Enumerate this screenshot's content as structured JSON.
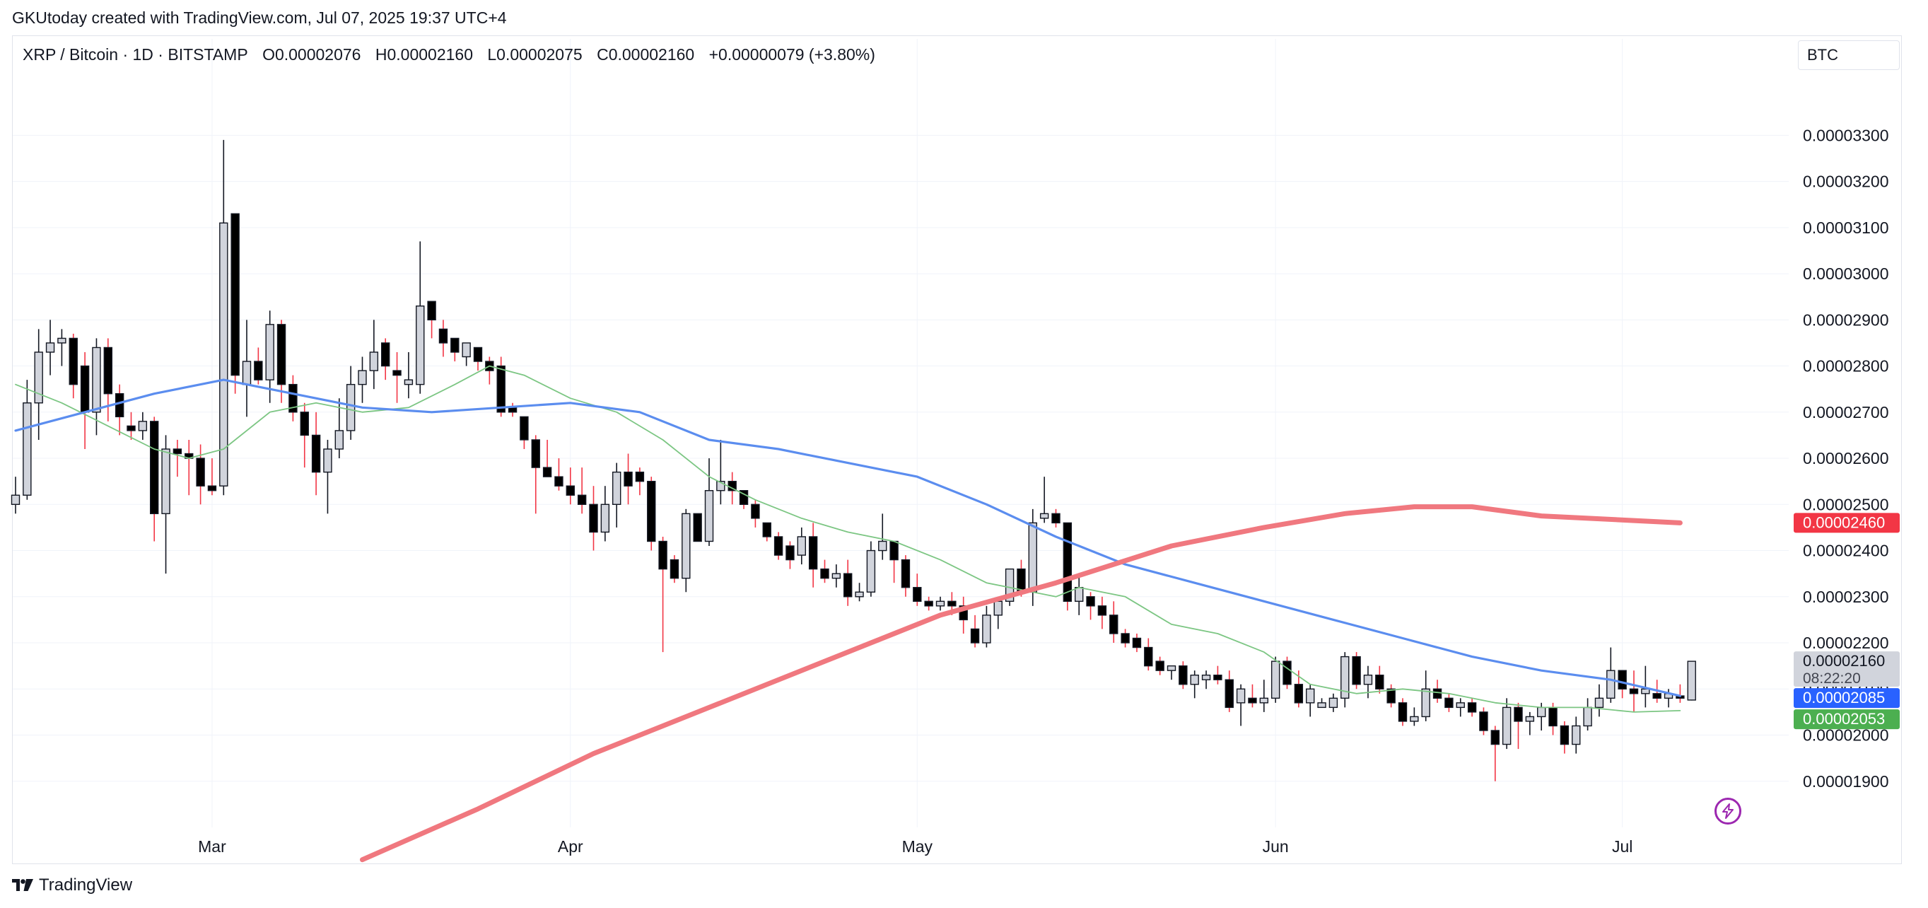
{
  "caption": "GKUtoday created with TradingView.com, Jul 07, 2025 19:37 UTC+4",
  "legend": {
    "symbol": "XRP / Bitcoin · 1D · BITSTAMP",
    "open": "O0.00002076",
    "high": "H0.00002160",
    "low": "L0.00002075",
    "close": "C0.00002160",
    "change": "+0.00000079 (+3.80%)"
  },
  "currency_button": "BTC",
  "footer_brand": "TradingView",
  "colors": {
    "up_body": "#d1d4dc",
    "down_body": "#000000",
    "ma_red": "#f0787f",
    "ma_blue": "#5b8def",
    "ma_green": "#7cc683",
    "badge_red": "#f23645",
    "badge_blue": "#2962ff",
    "badge_green": "#4caf50",
    "badge_gray": "#d1d4dc"
  },
  "chart_data": {
    "type": "candlestick",
    "title": "XRP / Bitcoin · 1D · BITSTAMP",
    "ylim": [
      1.8e-05,
      3.44e-05
    ],
    "y_ticks": [
      "0.00001900",
      "0.00002000",
      "0.00002100",
      "0.00002200",
      "0.00002300",
      "0.00002400",
      "0.00002500",
      "0.00002600",
      "0.00002700",
      "0.00002800",
      "0.00002900",
      "0.00003000",
      "0.00003100",
      "0.00003200",
      "0.00003300"
    ],
    "x_labels": [
      {
        "label": "Mar",
        "day": 17
      },
      {
        "label": "Apr",
        "day": 48
      },
      {
        "label": "May",
        "day": 78
      },
      {
        "label": "Jun",
        "day": 109
      },
      {
        "label": "Jul",
        "day": 139
      }
    ],
    "candles": [
      [
        2.5e-05,
        2.56e-05,
        2.48e-05,
        2.52e-05
      ],
      [
        2.52e-05,
        2.77e-05,
        2.51e-05,
        2.72e-05
      ],
      [
        2.72e-05,
        2.88e-05,
        2.64e-05,
        2.83e-05
      ],
      [
        2.83e-05,
        2.9e-05,
        2.78e-05,
        2.85e-05
      ],
      [
        2.85e-05,
        2.88e-05,
        2.8e-05,
        2.86e-05
      ],
      [
        2.86e-05,
        2.87e-05,
        2.73e-05,
        2.76e-05
      ],
      [
        2.8e-05,
        2.83e-05,
        2.62e-05,
        2.7e-05
      ],
      [
        2.7e-05,
        2.86e-05,
        2.65e-05,
        2.84e-05
      ],
      [
        2.84e-05,
        2.86e-05,
        2.68e-05,
        2.74e-05
      ],
      [
        2.74e-05,
        2.76e-05,
        2.65e-05,
        2.69e-05
      ],
      [
        2.67e-05,
        2.7e-05,
        2.64e-05,
        2.66e-05
      ],
      [
        2.66e-05,
        2.7e-05,
        2.64e-05,
        2.68e-05
      ],
      [
        2.68e-05,
        2.69e-05,
        2.42e-05,
        2.48e-05
      ],
      [
        2.48e-05,
        2.65e-05,
        2.35e-05,
        2.62e-05
      ],
      [
        2.62e-05,
        2.64e-05,
        2.56e-05,
        2.61e-05
      ],
      [
        2.61e-05,
        2.64e-05,
        2.52e-05,
        2.6e-05
      ],
      [
        2.6e-05,
        2.63e-05,
        2.5e-05,
        2.54e-05
      ],
      [
        2.54e-05,
        2.6e-05,
        2.52e-05,
        2.53e-05
      ],
      [
        2.54e-05,
        3.29e-05,
        2.52e-05,
        3.11e-05
      ],
      [
        3.13e-05,
        3.13e-05,
        2.74e-05,
        2.78e-05
      ],
      [
        2.76e-05,
        2.9e-05,
        2.69e-05,
        2.81e-05
      ],
      [
        2.81e-05,
        2.84e-05,
        2.76e-05,
        2.77e-05
      ],
      [
        2.77e-05,
        2.92e-05,
        2.72e-05,
        2.89e-05
      ],
      [
        2.89e-05,
        2.9e-05,
        2.72e-05,
        2.76e-05
      ],
      [
        2.76e-05,
        2.78e-05,
        2.68e-05,
        2.7e-05
      ],
      [
        2.7e-05,
        2.72e-05,
        2.58e-05,
        2.65e-05
      ],
      [
        2.65e-05,
        2.7e-05,
        2.52e-05,
        2.57e-05
      ],
      [
        2.57e-05,
        2.64e-05,
        2.48e-05,
        2.62e-05
      ],
      [
        2.62e-05,
        2.73e-05,
        2.6e-05,
        2.66e-05
      ],
      [
        2.66e-05,
        2.8e-05,
        2.64e-05,
        2.76e-05
      ],
      [
        2.76e-05,
        2.82e-05,
        2.72e-05,
        2.79e-05
      ],
      [
        2.79e-05,
        2.9e-05,
        2.75e-05,
        2.83e-05
      ],
      [
        2.85e-05,
        2.86e-05,
        2.77e-05,
        2.8e-05
      ],
      [
        2.79e-05,
        2.83e-05,
        2.72e-05,
        2.78e-05
      ],
      [
        2.76e-05,
        2.83e-05,
        2.73e-05,
        2.77e-05
      ],
      [
        2.76e-05,
        3.07e-05,
        2.74e-05,
        2.93e-05
      ],
      [
        2.94e-05,
        2.94e-05,
        2.86e-05,
        2.9e-05
      ],
      [
        2.88e-05,
        2.9e-05,
        2.82e-05,
        2.85e-05
      ],
      [
        2.86e-05,
        2.86e-05,
        2.81e-05,
        2.83e-05
      ],
      [
        2.82e-05,
        2.85e-05,
        2.8e-05,
        2.85e-05
      ],
      [
        2.84e-05,
        2.84e-05,
        2.79e-05,
        2.81e-05
      ],
      [
        2.81e-05,
        2.82e-05,
        2.76e-05,
        2.79e-05
      ],
      [
        2.8e-05,
        2.82e-05,
        2.69e-05,
        2.7e-05
      ],
      [
        2.71e-05,
        2.72e-05,
        2.69e-05,
        2.7e-05
      ],
      [
        2.69e-05,
        2.69e-05,
        2.62e-05,
        2.64e-05
      ],
      [
        2.64e-05,
        2.65e-05,
        2.48e-05,
        2.58e-05
      ],
      [
        2.58e-05,
        2.64e-05,
        2.56e-05,
        2.56e-05
      ],
      [
        2.56e-05,
        2.6e-05,
        2.53e-05,
        2.54e-05
      ],
      [
        2.54e-05,
        2.58e-05,
        2.5e-05,
        2.52e-05
      ],
      [
        2.52e-05,
        2.58e-05,
        2.48e-05,
        2.5e-05
      ],
      [
        2.5e-05,
        2.54e-05,
        2.4e-05,
        2.44e-05
      ],
      [
        2.44e-05,
        2.54e-05,
        2.42e-05,
        2.5e-05
      ],
      [
        2.5e-05,
        2.59e-05,
        2.45e-05,
        2.57e-05
      ],
      [
        2.57e-05,
        2.61e-05,
        2.5e-05,
        2.54e-05
      ],
      [
        2.57e-05,
        2.58e-05,
        2.52e-05,
        2.55e-05
      ],
      [
        2.55e-05,
        2.56e-05,
        2.4e-05,
        2.42e-05
      ],
      [
        2.42e-05,
        2.43e-05,
        2.18e-05,
        2.36e-05
      ],
      [
        2.38e-05,
        2.39e-05,
        2.33e-05,
        2.34e-05
      ],
      [
        2.34e-05,
        2.49e-05,
        2.31e-05,
        2.48e-05
      ],
      [
        2.48e-05,
        2.48e-05,
        2.42e-05,
        2.42e-05
      ],
      [
        2.42e-05,
        2.6e-05,
        2.41e-05,
        2.53e-05
      ],
      [
        2.53e-05,
        2.64e-05,
        2.5e-05,
        2.55e-05
      ],
      [
        2.55e-05,
        2.57e-05,
        2.5e-05,
        2.53e-05
      ],
      [
        2.53e-05,
        2.53e-05,
        2.49e-05,
        2.5e-05
      ],
      [
        2.5e-05,
        2.51e-05,
        2.45e-05,
        2.47e-05
      ],
      [
        2.46e-05,
        2.46e-05,
        2.42e-05,
        2.43e-05
      ],
      [
        2.43e-05,
        2.44e-05,
        2.38e-05,
        2.39e-05
      ],
      [
        2.41e-05,
        2.42e-05,
        2.36e-05,
        2.38e-05
      ],
      [
        2.39e-05,
        2.45e-05,
        2.37e-05,
        2.43e-05
      ],
      [
        2.43e-05,
        2.46e-05,
        2.32e-05,
        2.36e-05
      ],
      [
        2.36e-05,
        2.38e-05,
        2.33e-05,
        2.34e-05
      ],
      [
        2.34e-05,
        2.37e-05,
        2.32e-05,
        2.35e-05
      ],
      [
        2.35e-05,
        2.38e-05,
        2.28e-05,
        2.3e-05
      ],
      [
        2.3e-05,
        2.33e-05,
        2.29e-05,
        2.31e-05
      ],
      [
        2.31e-05,
        2.42e-05,
        2.3e-05,
        2.4e-05
      ],
      [
        2.4e-05,
        2.48e-05,
        2.38e-05,
        2.42e-05
      ],
      [
        2.42e-05,
        2.42e-05,
        2.33e-05,
        2.38e-05
      ],
      [
        2.38e-05,
        2.39e-05,
        2.3e-05,
        2.32e-05
      ],
      [
        2.32e-05,
        2.35e-05,
        2.28e-05,
        2.29e-05
      ],
      [
        2.29e-05,
        2.3e-05,
        2.27e-05,
        2.28e-05
      ],
      [
        2.28e-05,
        2.3e-05,
        2.27e-05,
        2.29e-05
      ],
      [
        2.29e-05,
        2.31e-05,
        2.26e-05,
        2.28e-05
      ],
      [
        2.28e-05,
        2.3e-05,
        2.22e-05,
        2.25e-05
      ],
      [
        2.23e-05,
        2.26e-05,
        2.19e-05,
        2.2e-05
      ],
      [
        2.2e-05,
        2.28e-05,
        2.19e-05,
        2.26e-05
      ],
      [
        2.26e-05,
        2.3e-05,
        2.23e-05,
        2.29e-05
      ],
      [
        2.29e-05,
        2.36e-05,
        2.28e-05,
        2.36e-05
      ],
      [
        2.36e-05,
        2.38e-05,
        2.3e-05,
        2.31e-05
      ],
      [
        2.31e-05,
        2.49e-05,
        2.28e-05,
        2.46e-05
      ],
      [
        2.47e-05,
        2.56e-05,
        2.46e-05,
        2.48e-05
      ],
      [
        2.48e-05,
        2.49e-05,
        2.45e-05,
        2.46e-05
      ],
      [
        2.46e-05,
        2.46e-05,
        2.27e-05,
        2.29e-05
      ],
      [
        2.29e-05,
        2.35e-05,
        2.26e-05,
        2.32e-05
      ],
      [
        2.3e-05,
        2.31e-05,
        2.25e-05,
        2.28e-05
      ],
      [
        2.28e-05,
        2.3e-05,
        2.23e-05,
        2.26e-05
      ],
      [
        2.26e-05,
        2.29e-05,
        2.2e-05,
        2.22e-05
      ],
      [
        2.22e-05,
        2.23e-05,
        2.19e-05,
        2.2e-05
      ],
      [
        2.21e-05,
        2.22e-05,
        2.18e-05,
        2.19e-05
      ],
      [
        2.19e-05,
        2.21e-05,
        2.14e-05,
        2.15e-05
      ],
      [
        2.16e-05,
        2.17e-05,
        2.13e-05,
        2.14e-05
      ],
      [
        2.14e-05,
        2.15e-05,
        2.12e-05,
        2.15e-05
      ],
      [
        2.15e-05,
        2.16e-05,
        2.1e-05,
        2.11e-05
      ],
      [
        2.11e-05,
        2.14e-05,
        2.08e-05,
        2.13e-05
      ],
      [
        2.12e-05,
        2.14e-05,
        2.1e-05,
        2.13e-05
      ],
      [
        2.13e-05,
        2.15e-05,
        2.11e-05,
        2.12e-05
      ],
      [
        2.12e-05,
        2.14e-05,
        2.05e-05,
        2.06e-05
      ],
      [
        2.07e-05,
        2.11e-05,
        2.02e-05,
        2.1e-05
      ],
      [
        2.08e-05,
        2.11e-05,
        2.06e-05,
        2.07e-05
      ],
      [
        2.07e-05,
        2.12e-05,
        2.05e-05,
        2.08e-05
      ],
      [
        2.08e-05,
        2.17e-05,
        2.07e-05,
        2.16e-05
      ],
      [
        2.16e-05,
        2.17e-05,
        2.1e-05,
        2.11e-05
      ],
      [
        2.11e-05,
        2.14e-05,
        2.06e-05,
        2.07e-05
      ],
      [
        2.07e-05,
        2.11e-05,
        2.04e-05,
        2.1e-05
      ],
      [
        2.06e-05,
        2.08e-05,
        2.06e-05,
        2.07e-05
      ],
      [
        2.06e-05,
        2.09e-05,
        2.05e-05,
        2.08e-05
      ],
      [
        2.08e-05,
        2.18e-05,
        2.06e-05,
        2.17e-05
      ],
      [
        2.17e-05,
        2.18e-05,
        2.1e-05,
        2.11e-05
      ],
      [
        2.11e-05,
        2.15e-05,
        2.08e-05,
        2.13e-05
      ],
      [
        2.13e-05,
        2.15e-05,
        2.09e-05,
        2.1e-05
      ],
      [
        2.1e-05,
        2.11e-05,
        2.06e-05,
        2.07e-05
      ],
      [
        2.07e-05,
        2.08e-05,
        2.02e-05,
        2.03e-05
      ],
      [
        2.03e-05,
        2.06e-05,
        2.02e-05,
        2.04e-05
      ],
      [
        2.04e-05,
        2.14e-05,
        2.03e-05,
        2.1e-05
      ],
      [
        2.1e-05,
        2.12e-05,
        2.07e-05,
        2.08e-05
      ],
      [
        2.08e-05,
        2.09e-05,
        2.05e-05,
        2.06e-05
      ],
      [
        2.06e-05,
        2.08e-05,
        2.04e-05,
        2.07e-05
      ],
      [
        2.07e-05,
        2.08e-05,
        2.04e-05,
        2.05e-05
      ],
      [
        2.05e-05,
        2.06e-05,
        2e-05,
        2.01e-05
      ],
      [
        2.01e-05,
        2.02e-05,
        1.9e-05,
        1.98e-05
      ],
      [
        1.98e-05,
        2.08e-05,
        1.97e-05,
        2.06e-05
      ],
      [
        2.06e-05,
        2.07e-05,
        1.97e-05,
        2.03e-05
      ],
      [
        2.03e-05,
        2.05e-05,
        2e-05,
        2.04e-05
      ],
      [
        2.04e-05,
        2.07e-05,
        2.01e-05,
        2.06e-05
      ],
      [
        2.06e-05,
        2.07e-05,
        2e-05,
        2.02e-05
      ],
      [
        2.02e-05,
        2.03e-05,
        1.96e-05,
        1.98e-05
      ],
      [
        1.98e-05,
        2.04e-05,
        1.96e-05,
        2.02e-05
      ],
      [
        2.02e-05,
        2.08e-05,
        2.01e-05,
        2.06e-05
      ],
      [
        2.06e-05,
        2.11e-05,
        2.04e-05,
        2.08e-05
      ],
      [
        2.08e-05,
        2.19e-05,
        2.07e-05,
        2.14e-05
      ],
      [
        2.14e-05,
        2.14e-05,
        2.08e-05,
        2.1e-05
      ],
      [
        2.1e-05,
        2.14e-05,
        2.05e-05,
        2.09e-05
      ],
      [
        2.09e-05,
        2.15e-05,
        2.06e-05,
        2.1e-05
      ],
      [
        2.09e-05,
        2.12e-05,
        2.07e-05,
        2.08e-05
      ],
      [
        2.08e-05,
        2.1e-05,
        2.06e-05,
        2.09e-05
      ],
      [
        2.085e-05,
        2.11e-05,
        2.07e-05,
        2.08e-05
      ],
      [
        2.076e-05,
        2.16e-05,
        2.075e-05,
        2.16e-05
      ]
    ],
    "ma_red": [
      [
        30,
        1.73e-05
      ],
      [
        40,
        1.84e-05
      ],
      [
        50,
        1.96e-05
      ],
      [
        60,
        2.06e-05
      ],
      [
        70,
        2.16e-05
      ],
      [
        80,
        2.26e-05
      ],
      [
        90,
        2.33e-05
      ],
      [
        100,
        2.41e-05
      ],
      [
        108,
        2.45e-05
      ],
      [
        115,
        2.48e-05
      ],
      [
        121,
        2.495e-05
      ],
      [
        126,
        2.495e-05
      ],
      [
        132,
        2.475e-05
      ],
      [
        140,
        2.465e-05
      ],
      [
        144,
        2.46e-05
      ]
    ],
    "ma_blue": [
      [
        0,
        2.66e-05
      ],
      [
        6,
        2.7e-05
      ],
      [
        12,
        2.74e-05
      ],
      [
        18,
        2.77e-05
      ],
      [
        24,
        2.74e-05
      ],
      [
        30,
        2.71e-05
      ],
      [
        36,
        2.7e-05
      ],
      [
        42,
        2.71e-05
      ],
      [
        48,
        2.72e-05
      ],
      [
        54,
        2.7e-05
      ],
      [
        60,
        2.64e-05
      ],
      [
        66,
        2.62e-05
      ],
      [
        72,
        2.59e-05
      ],
      [
        78,
        2.56e-05
      ],
      [
        84,
        2.5e-05
      ],
      [
        90,
        2.43e-05
      ],
      [
        96,
        2.37e-05
      ],
      [
        102,
        2.33e-05
      ],
      [
        108,
        2.29e-05
      ],
      [
        114,
        2.25e-05
      ],
      [
        120,
        2.21e-05
      ],
      [
        126,
        2.17e-05
      ],
      [
        132,
        2.14e-05
      ],
      [
        138,
        2.12e-05
      ],
      [
        144,
        2.085e-05
      ]
    ],
    "ma_green": [
      [
        0,
        2.76e-05
      ],
      [
        4,
        2.72e-05
      ],
      [
        8,
        2.67e-05
      ],
      [
        12,
        2.62e-05
      ],
      [
        15,
        2.6e-05
      ],
      [
        18,
        2.62e-05
      ],
      [
        22,
        2.7e-05
      ],
      [
        26,
        2.72e-05
      ],
      [
        30,
        2.7e-05
      ],
      [
        34,
        2.71e-05
      ],
      [
        38,
        2.76e-05
      ],
      [
        41,
        2.8e-05
      ],
      [
        44,
        2.78e-05
      ],
      [
        48,
        2.73e-05
      ],
      [
        52,
        2.7e-05
      ],
      [
        56,
        2.64e-05
      ],
      [
        60,
        2.56e-05
      ],
      [
        64,
        2.51e-05
      ],
      [
        68,
        2.47e-05
      ],
      [
        72,
        2.44e-05
      ],
      [
        76,
        2.42e-05
      ],
      [
        80,
        2.38e-05
      ],
      [
        84,
        2.33e-05
      ],
      [
        88,
        2.31e-05
      ],
      [
        90,
        2.3e-05
      ],
      [
        92,
        2.32e-05
      ],
      [
        96,
        2.3e-05
      ],
      [
        100,
        2.24e-05
      ],
      [
        104,
        2.22e-05
      ],
      [
        108,
        2.18e-05
      ],
      [
        112,
        2.11e-05
      ],
      [
        116,
        2.09e-05
      ],
      [
        120,
        2.1e-05
      ],
      [
        124,
        2.09e-05
      ],
      [
        128,
        2.07e-05
      ],
      [
        132,
        2.06e-05
      ],
      [
        136,
        2.06e-05
      ],
      [
        140,
        2.05e-05
      ],
      [
        144,
        2.053e-05
      ]
    ],
    "price_badges": [
      {
        "name": "ma-red-value",
        "value": "0.00002460",
        "y": 2.46e-05,
        "color": "#f23645",
        "text_color": "#ffffff"
      },
      {
        "name": "last-price",
        "value": "0.00002160",
        "y": 2.16e-05,
        "color": "#d1d4dc",
        "text_color": "#131722",
        "sub": "08:22:20"
      },
      {
        "name": "ma-blue-value",
        "value": "0.00002085",
        "y": 2.085e-05,
        "color": "#2962ff",
        "text_color": "#ffffff"
      },
      {
        "name": "ma-green-value",
        "value": "0.00002053",
        "y": 2.053e-05,
        "color": "#4caf50",
        "text_color": "#ffffff"
      }
    ]
  }
}
